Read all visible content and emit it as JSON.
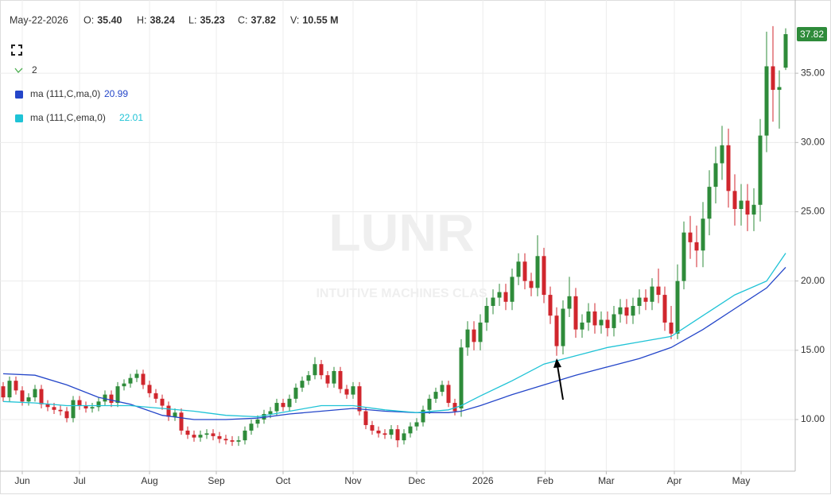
{
  "chart_data": {
    "type": "candlestick",
    "header": {
      "date": "May-22-2026",
      "fields": [
        {
          "label": "O:",
          "value": "35.40"
        },
        {
          "label": "H:",
          "value": "38.24"
        },
        {
          "label": "L:",
          "value": "35.23"
        },
        {
          "label": "C:",
          "value": "37.82"
        },
        {
          "label": "V:",
          "value": "10.55 M"
        }
      ]
    },
    "watermark": {
      "symbol": "LUNR",
      "name": "INTUITIVE MACHINES CLAS"
    },
    "indicator_count": 2,
    "candles": {
      "up_color": "#2e8b3a",
      "down_color": "#d0262d",
      "open": [
        12.4,
        11.6,
        12.8,
        12.1,
        11.3,
        11.6,
        12.2,
        11.1,
        10.9,
        10.7,
        10.6,
        10.1,
        11.4,
        11.0,
        10.8,
        10.9,
        11.3,
        11.8,
        11.2,
        12.4,
        12.6,
        13.0,
        13.3,
        12.5,
        11.9,
        11.5,
        11.0,
        10.2,
        10.5,
        9.2,
        8.9,
        8.7,
        8.9,
        9.0,
        8.8,
        8.6,
        8.5,
        8.4,
        8.5,
        9.2,
        9.7,
        10.0,
        10.4,
        10.6,
        11.2,
        10.9,
        11.5,
        12.3,
        12.8,
        13.2,
        14.0,
        13.2,
        12.6,
        13.5,
        12.2,
        11.8,
        12.4,
        10.6,
        9.6,
        9.2,
        9.0,
        8.9,
        9.3,
        8.5,
        9.0,
        9.5,
        9.8,
        10.7,
        11.5,
        12.0,
        12.5,
        11.2,
        10.8,
        15.2,
        16.5,
        15.6,
        17.0,
        18.2,
        18.8,
        19.2,
        18.5,
        20.3,
        21.4,
        20.0,
        19.5,
        21.8,
        19.0,
        17.5,
        15.3,
        18.0,
        18.9,
        16.5,
        17.0,
        17.8,
        16.8,
        17.2,
        16.6,
        17.6,
        18.1,
        17.5,
        18.2,
        18.8,
        18.5,
        19.6,
        19.0,
        17.0,
        16.2,
        20.0,
        23.5,
        22.8,
        22.2,
        24.5,
        26.8,
        28.5,
        29.8,
        26.5,
        25.2,
        25.8,
        24.8,
        25.5,
        30.5,
        35.5,
        33.8,
        35.4
      ],
      "high": [
        12.7,
        13.1,
        13.1,
        12.4,
        11.9,
        12.5,
        12.5,
        11.4,
        11.2,
        11.0,
        10.9,
        11.7,
        11.7,
        11.3,
        11.2,
        11.6,
        12.1,
        12.1,
        12.7,
        12.9,
        13.3,
        13.6,
        13.6,
        12.8,
        12.2,
        11.8,
        11.3,
        10.8,
        10.8,
        9.5,
        9.2,
        9.2,
        9.3,
        9.3,
        9.1,
        8.9,
        8.8,
        8.8,
        9.5,
        10.0,
        10.3,
        10.7,
        10.9,
        11.5,
        11.5,
        11.8,
        12.6,
        13.1,
        13.5,
        14.5,
        14.3,
        13.5,
        13.8,
        13.8,
        12.5,
        12.7,
        12.7,
        10.9,
        9.9,
        9.5,
        9.3,
        9.6,
        9.6,
        9.3,
        9.8,
        10.1,
        11.0,
        11.8,
        12.3,
        12.8,
        12.8,
        11.5,
        15.8,
        17.1,
        17.1,
        17.6,
        18.8,
        19.4,
        19.8,
        19.8,
        20.9,
        22.0,
        22.0,
        20.6,
        23.3,
        22.4,
        19.6,
        18.1,
        18.6,
        20.3,
        19.5,
        17.6,
        18.4,
        18.4,
        17.8,
        17.8,
        18.2,
        18.7,
        18.7,
        18.8,
        19.4,
        19.4,
        20.2,
        20.9,
        19.6,
        18.2,
        21.2,
        24.3,
        24.7,
        24.0,
        25.7,
        28.0,
        29.7,
        31.2,
        31.0,
        27.7,
        27.0,
        27.0,
        26.7,
        31.7,
        38.0,
        38.4,
        35.2,
        38.24
      ],
      "low": [
        11.3,
        11.3,
        11.8,
        11.0,
        11.0,
        11.3,
        10.8,
        10.6,
        10.4,
        10.3,
        9.8,
        9.8,
        10.7,
        10.5,
        10.5,
        10.6,
        11.0,
        10.9,
        10.9,
        12.1,
        12.3,
        12.7,
        12.2,
        11.6,
        11.2,
        10.7,
        9.9,
        9.9,
        8.9,
        8.6,
        8.4,
        8.4,
        8.6,
        8.5,
        8.3,
        8.2,
        8.1,
        8.1,
        8.2,
        8.9,
        9.4,
        9.7,
        10.1,
        10.3,
        10.6,
        10.6,
        11.2,
        12.0,
        12.5,
        12.9,
        12.9,
        12.3,
        12.3,
        11.9,
        11.5,
        11.5,
        10.3,
        9.3,
        8.9,
        8.7,
        8.6,
        8.6,
        8.0,
        8.2,
        8.7,
        9.2,
        9.5,
        10.4,
        11.2,
        11.7,
        10.9,
        10.3,
        10.2,
        14.6,
        15.0,
        15.0,
        16.4,
        17.6,
        18.2,
        17.9,
        17.9,
        19.7,
        19.4,
        18.9,
        18.9,
        18.4,
        16.9,
        14.6,
        14.7,
        17.4,
        15.9,
        15.9,
        16.4,
        16.2,
        16.2,
        16.0,
        16.0,
        17.0,
        16.9,
        16.9,
        17.6,
        17.9,
        17.9,
        18.4,
        16.4,
        15.8,
        15.8,
        19.4,
        21.6,
        21.0,
        21.0,
        23.3,
        25.6,
        27.3,
        25.3,
        24.0,
        24.0,
        23.6,
        23.6,
        24.3,
        29.3,
        31.5,
        31.0,
        35.23
      ],
      "close": [
        11.6,
        12.8,
        12.1,
        11.3,
        11.6,
        12.2,
        11.1,
        10.9,
        10.7,
        10.6,
        10.1,
        11.4,
        11.0,
        10.8,
        10.9,
        11.3,
        11.8,
        11.2,
        12.4,
        12.6,
        13.0,
        13.3,
        12.5,
        11.9,
        11.5,
        11.0,
        10.2,
        10.5,
        9.2,
        8.9,
        8.7,
        8.9,
        9.0,
        8.8,
        8.6,
        8.5,
        8.4,
        8.5,
        9.2,
        9.7,
        10.0,
        10.4,
        10.6,
        11.2,
        10.9,
        11.5,
        12.3,
        12.8,
        13.2,
        14.0,
        13.2,
        12.6,
        13.5,
        12.2,
        11.8,
        12.4,
        10.6,
        9.6,
        9.2,
        9.0,
        8.9,
        9.3,
        8.5,
        9.0,
        9.5,
        9.8,
        10.7,
        11.5,
        12.0,
        12.5,
        11.2,
        10.6,
        15.2,
        16.5,
        15.6,
        17.0,
        18.2,
        18.8,
        19.2,
        18.5,
        20.3,
        21.4,
        20.0,
        19.5,
        21.8,
        19.0,
        17.5,
        15.3,
        18.0,
        18.9,
        16.5,
        17.0,
        17.8,
        16.8,
        17.2,
        16.6,
        17.6,
        18.1,
        17.5,
        18.2,
        18.8,
        18.5,
        19.6,
        19.0,
        17.0,
        16.2,
        20.0,
        23.5,
        22.8,
        22.2,
        24.5,
        26.8,
        28.5,
        29.8,
        26.5,
        25.2,
        25.8,
        24.8,
        25.5,
        30.5,
        35.5,
        33.8,
        34.0,
        37.82
      ]
    },
    "series": [
      {
        "name": "ma (111,C,ma,0)",
        "color": "#2446c9",
        "x": [
          0,
          5,
          10,
          15,
          20,
          25,
          30,
          35,
          40,
          45,
          50,
          55,
          60,
          65,
          70,
          72,
          75,
          80,
          85,
          90,
          95,
          100,
          105,
          110,
          115,
          120,
          123
        ],
        "values": [
          13.3,
          13.2,
          12.5,
          11.6,
          11.1,
          10.3,
          10.0,
          10.0,
          10.1,
          10.4,
          10.6,
          10.8,
          10.6,
          10.5,
          10.5,
          10.6,
          11.0,
          11.8,
          12.5,
          13.2,
          13.8,
          14.4,
          15.2,
          16.5,
          18.0,
          19.5,
          20.99
        ]
      },
      {
        "name": "ma (111,C,ema,0)",
        "color": "#1fc3d6",
        "x": [
          0,
          5,
          10,
          15,
          20,
          25,
          30,
          35,
          40,
          45,
          50,
          55,
          60,
          65,
          70,
          72,
          75,
          80,
          85,
          90,
          95,
          100,
          105,
          110,
          115,
          120,
          123
        ],
        "values": [
          11.3,
          11.2,
          11.0,
          11.0,
          11.0,
          10.8,
          10.6,
          10.3,
          10.2,
          10.6,
          11.0,
          11.0,
          10.7,
          10.5,
          10.7,
          11.0,
          11.7,
          12.8,
          14.0,
          14.6,
          15.2,
          15.6,
          16.0,
          17.5,
          19.0,
          20.0,
          22.01
        ]
      }
    ],
    "xticks": [
      {
        "value": 3,
        "label": "Jun"
      },
      {
        "value": 12,
        "label": "Jul"
      },
      {
        "value": 23,
        "label": "Aug"
      },
      {
        "value": 33.5,
        "label": "Sep"
      },
      {
        "value": 44,
        "label": "Oct"
      },
      {
        "value": 55,
        "label": "Nov"
      },
      {
        "value": 65,
        "label": "Dec"
      },
      {
        "value": 75.4,
        "label": "2026"
      },
      {
        "value": 85.2,
        "label": "Feb"
      },
      {
        "value": 94.8,
        "label": "Mar"
      },
      {
        "value": 105.5,
        "label": "Apr"
      },
      {
        "value": 116,
        "label": "May"
      }
    ],
    "ylim": [
      6.27,
      40
    ],
    "yticks": [
      {
        "value": 10,
        "label": "10.00"
      },
      {
        "value": 15,
        "label": "15.00"
      },
      {
        "value": 20,
        "label": "20.00"
      },
      {
        "value": 25,
        "label": "25.00"
      },
      {
        "value": 30,
        "label": "30.00"
      },
      {
        "value": 35,
        "label": "35.00"
      }
    ],
    "grid": true
  }
}
